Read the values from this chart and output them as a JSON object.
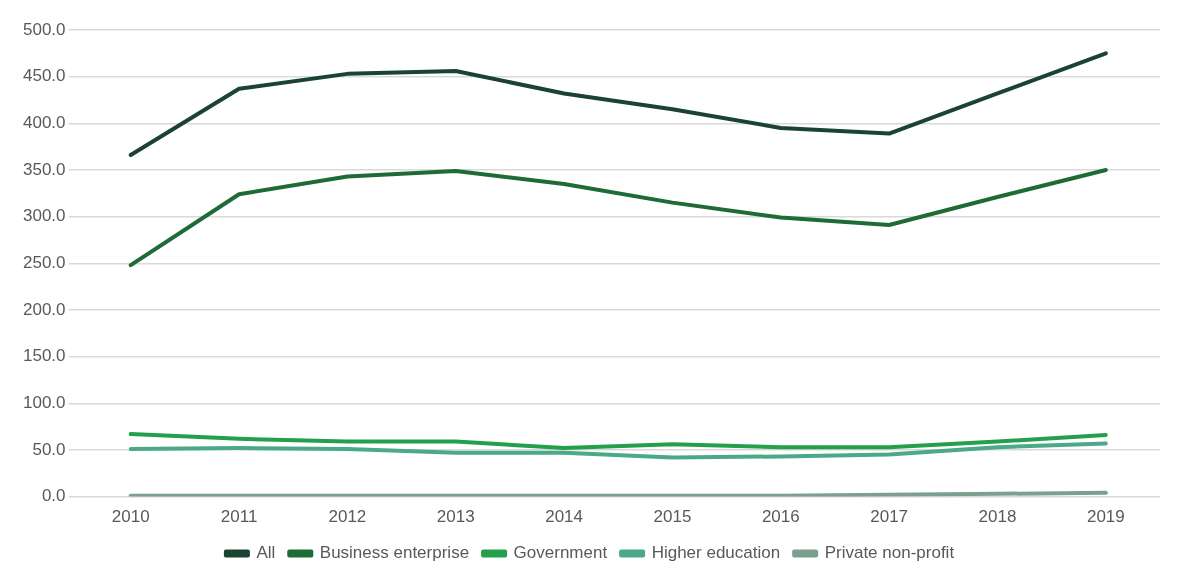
{
  "chart_data": {
    "type": "line",
    "categories": [
      "2010",
      "2011",
      "2012",
      "2013",
      "2014",
      "2015",
      "2016",
      "2017",
      "2018",
      "2019"
    ],
    "series": [
      {
        "name": "All",
        "color": "#1b4332",
        "values": [
          366,
          437,
          453,
          456,
          432,
          415,
          395,
          389,
          432,
          475
        ]
      },
      {
        "name": "Business enterprise",
        "color": "#1e6b35",
        "values": [
          248,
          324,
          343,
          349,
          335,
          315,
          299,
          291,
          321,
          350
        ]
      },
      {
        "name": "Government",
        "color": "#24a04c",
        "values": [
          67,
          62,
          59,
          59,
          52,
          56,
          53,
          53,
          59,
          66
        ]
      },
      {
        "name": "Higher education",
        "color": "#4aaa88",
        "values": [
          51,
          52,
          51,
          47,
          47,
          42,
          43,
          45,
          53,
          57
        ]
      },
      {
        "name": "Private non-profit",
        "color": "#7ba08e",
        "values": [
          1,
          1,
          1,
          1,
          1,
          1,
          1,
          2,
          3,
          4
        ]
      }
    ],
    "ylim": [
      0,
      500
    ],
    "yticks": [
      {
        "value": 0,
        "label": "0.0"
      },
      {
        "value": 50,
        "label": "50.0"
      },
      {
        "value": 100,
        "label": "100.0"
      },
      {
        "value": 150,
        "label": "150.0"
      },
      {
        "value": 200,
        "label": "200.0"
      },
      {
        "value": 250,
        "label": "250.0"
      },
      {
        "value": 300,
        "label": "300.0"
      },
      {
        "value": 350,
        "label": "350.0"
      },
      {
        "value": 400,
        "label": "400.0"
      },
      {
        "value": 450,
        "label": "450.0"
      },
      {
        "value": 500,
        "label": "500.0"
      }
    ],
    "grid": "y",
    "legend": "bottom",
    "marker": "none",
    "line_style": "solid"
  }
}
